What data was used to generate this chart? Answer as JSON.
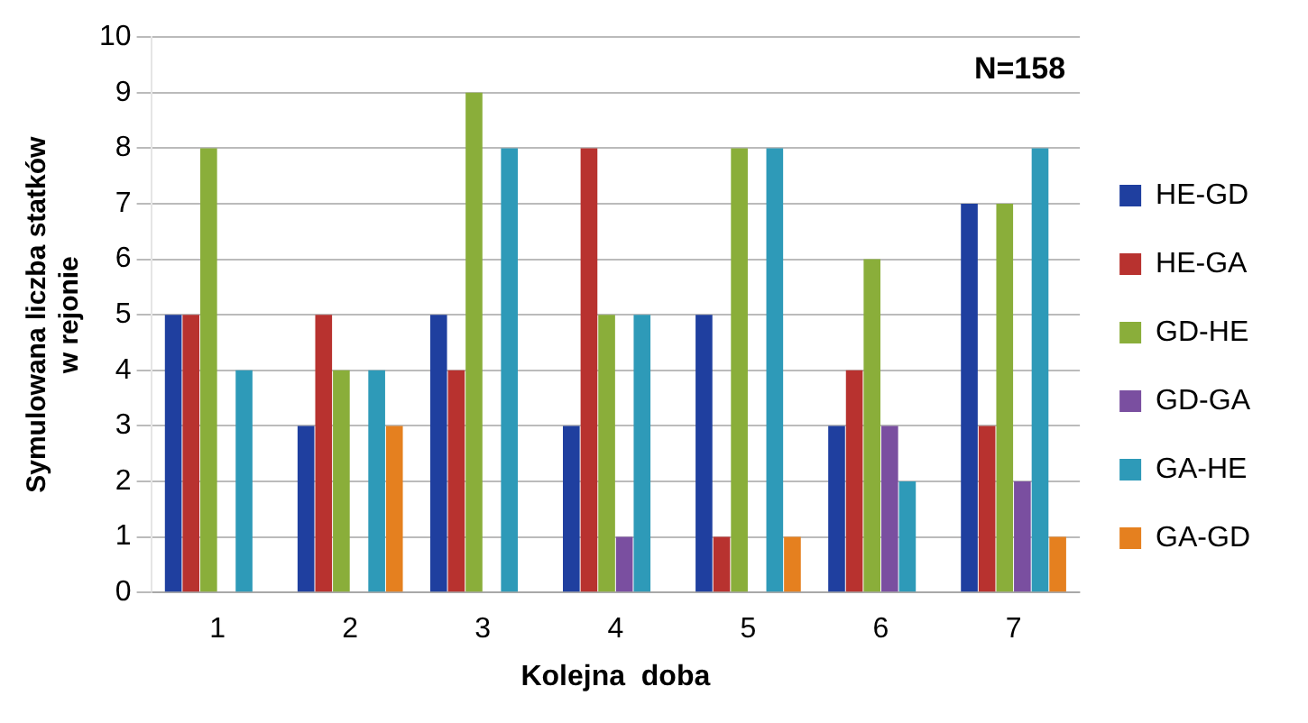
{
  "chart_data": {
    "type": "bar",
    "xlabel": "Kolejna  doba",
    "ylabel": "Symulowana liczba statków\nw rejonie",
    "annotations": [
      "N=158"
    ],
    "categories": [
      "1",
      "2",
      "3",
      "4",
      "5",
      "6",
      "7"
    ],
    "series": [
      {
        "name": "HE-GD",
        "color": "#1f3f9f",
        "values": [
          5,
          3,
          5,
          3,
          5,
          3,
          7
        ]
      },
      {
        "name": "HE-GA",
        "color": "#b8322f",
        "values": [
          5,
          5,
          4,
          8,
          1,
          4,
          3
        ]
      },
      {
        "name": "GD-HE",
        "color": "#8aae3a",
        "values": [
          8,
          4,
          9,
          5,
          8,
          6,
          7
        ]
      },
      {
        "name": "GD-GA",
        "color": "#7a4fa0",
        "values": [
          0,
          0,
          0,
          1,
          0,
          3,
          2
        ]
      },
      {
        "name": "GA-HE",
        "color": "#2e9ab8",
        "values": [
          4,
          4,
          8,
          5,
          8,
          2,
          8
        ]
      },
      {
        "name": "GA-GD",
        "color": "#e5801f",
        "values": [
          0,
          3,
          0,
          0,
          1,
          0,
          1
        ]
      }
    ],
    "ylim": [
      0,
      10
    ],
    "yticks": [
      0,
      1,
      2,
      3,
      4,
      5,
      6,
      7,
      8,
      9,
      10
    ],
    "grid": "y",
    "legend": "right"
  }
}
